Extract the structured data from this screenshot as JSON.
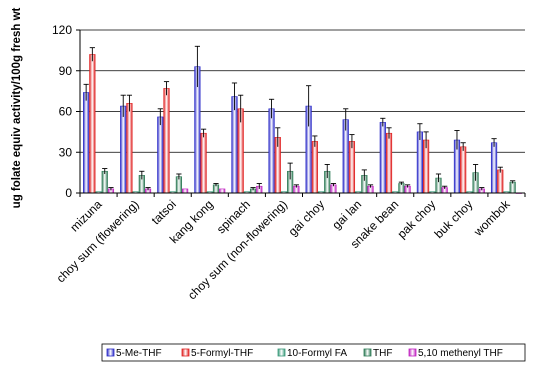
{
  "chart_data": {
    "type": "bar",
    "title": "",
    "xlabel": "",
    "ylabel": "ug folate equiv activity/100g fresh wt",
    "ylim": [
      0,
      120
    ],
    "yticks": [
      0,
      30,
      60,
      90,
      120
    ],
    "grid": "horizontal",
    "legend_position": "bottom",
    "categories": [
      "mizuna",
      "choy sum (flowering)",
      "tatsoi",
      "kang kong",
      "spinach",
      "choy sum (non-flowering)",
      "gai choy",
      "gai lan",
      "snake bean",
      "pak choy",
      "buk choy",
      "wombok"
    ],
    "series": [
      {
        "name": "5-Me-THF",
        "color": "#2b2bc8",
        "values": [
          74,
          64,
          56,
          93,
          71,
          62,
          64,
          54,
          52,
          45,
          39,
          37
        ],
        "errors": [
          6,
          8,
          6,
          15,
          10,
          7,
          15,
          8,
          3,
          6,
          7,
          3
        ]
      },
      {
        "name": "5-Formyl-THF",
        "color": "#e02020",
        "values": [
          102,
          66,
          77,
          44,
          62,
          41,
          38,
          38,
          44,
          39,
          34,
          17
        ],
        "errors": [
          5,
          6,
          5,
          3,
          10,
          7,
          4,
          5,
          4,
          6,
          3,
          2
        ]
      },
      {
        "name": "10-Formyl FA",
        "color": "#3a9a7a",
        "values": [
          1,
          1,
          1,
          1,
          1,
          1,
          1,
          1,
          1,
          1,
          1,
          1
        ],
        "errors": [
          0,
          0,
          0,
          0,
          0,
          0,
          0,
          0,
          0,
          0,
          0,
          0
        ]
      },
      {
        "name": "THF",
        "color": "#2d7a55",
        "values": [
          16,
          13,
          12,
          6,
          3,
          16,
          16,
          13,
          7,
          11,
          15,
          8
        ],
        "errors": [
          2,
          3,
          2,
          1,
          1,
          6,
          5,
          4,
          1,
          3,
          6,
          1
        ]
      },
      {
        "name": "5,10 methenyl THF",
        "color": "#c020c0",
        "values": [
          3,
          3,
          3,
          3,
          5,
          5,
          6,
          5,
          5,
          4,
          3,
          0
        ],
        "errors": [
          1,
          1,
          0,
          0,
          2,
          1,
          1,
          1,
          1,
          1,
          1,
          0
        ]
      }
    ]
  }
}
